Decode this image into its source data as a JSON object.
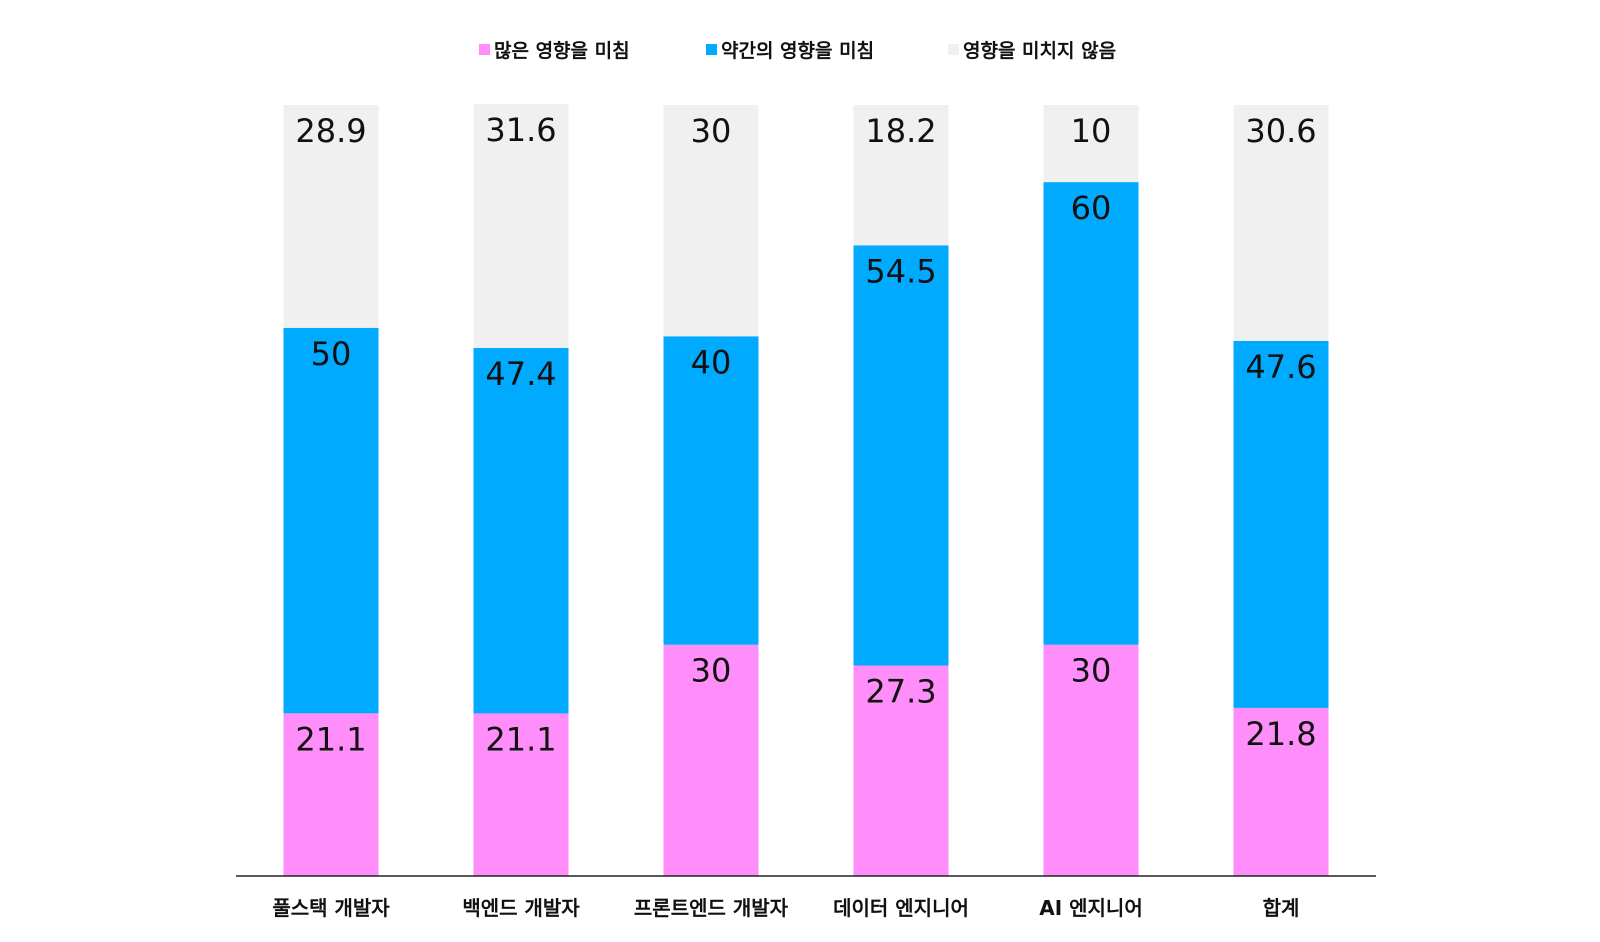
{
  "chart_data": {
    "type": "bar",
    "stacked": true,
    "categories": [
      "풀스택 개발자",
      "백엔드 개발자",
      "프론트엔드 개발자",
      "데이터 엔지니어",
      "AI 엔지니어",
      "합계"
    ],
    "series": [
      {
        "name": "많은 영향을 미침",
        "color": "#ff8dfa",
        "values": [
          21.1,
          21.1,
          30,
          27.3,
          30,
          21.8
        ],
        "labels": [
          "21.1",
          "21.1",
          "30",
          "27.3",
          "30",
          "21.8"
        ]
      },
      {
        "name": "약간의 영향을 미침",
        "color": "#00aaff",
        "values": [
          50,
          47.4,
          40,
          54.5,
          60,
          47.6
        ],
        "labels": [
          "50",
          "47.4",
          "40",
          "54.5",
          "60",
          "47.6"
        ]
      },
      {
        "name": "영향을 미치지 않음",
        "color": "#f0f0f0",
        "values": [
          28.9,
          31.6,
          30,
          18.2,
          10,
          30.6
        ],
        "labels": [
          "28.9",
          "31.6",
          "30",
          "18.2",
          "10",
          "30.6"
        ]
      }
    ],
    "ylim": [
      0,
      100
    ],
    "grid": false,
    "legend_position": "top"
  }
}
